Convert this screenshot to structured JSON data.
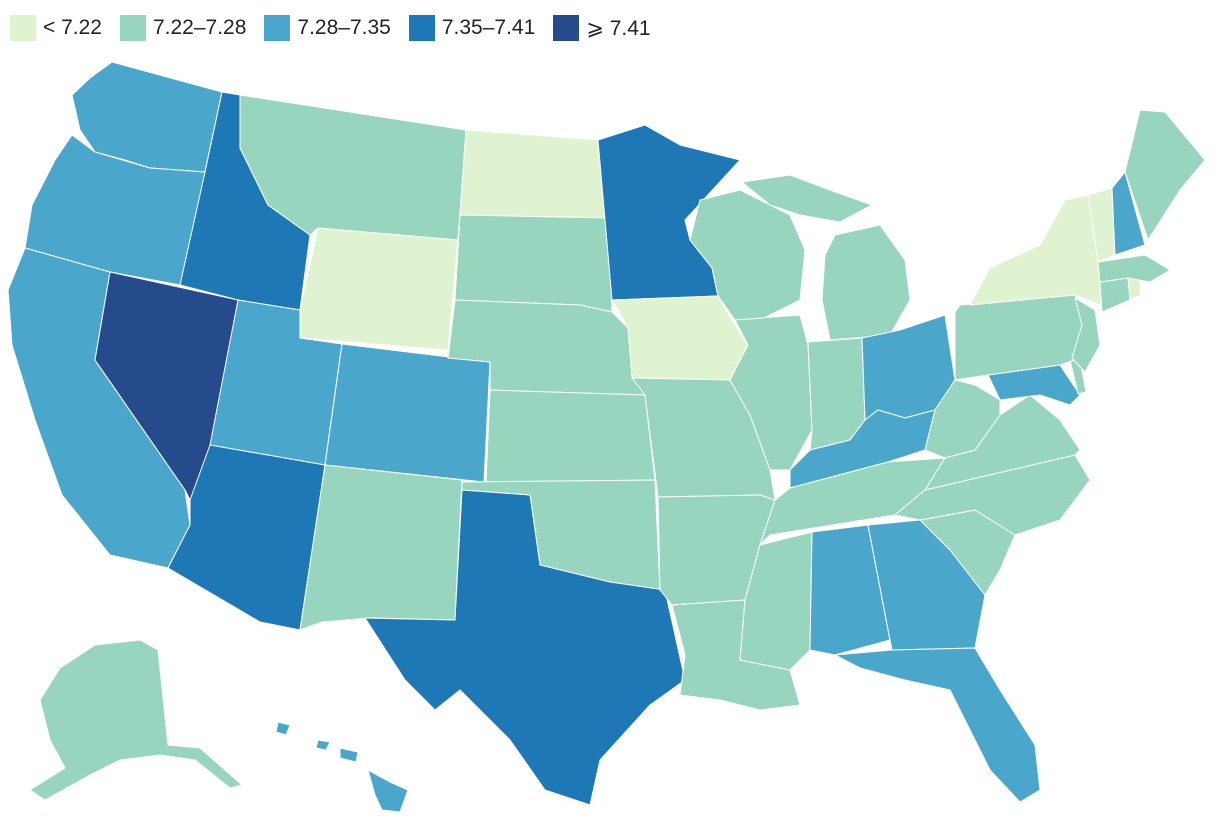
{
  "legend": [
    {
      "label": "< 7.22",
      "color": "#e0f3d0"
    },
    {
      "label": "7.22–7.28",
      "color": "#98d5bf"
    },
    {
      "label": "7.28–7.35",
      "color": "#4aa7cb"
    },
    {
      "label": "7.35–7.41",
      "color": "#1e78b6"
    },
    {
      "label": "⩾ 7.41",
      "color": "#264b8c"
    }
  ],
  "states": {
    "WA": 2,
    "OR": 2,
    "CA": 2,
    "NV": 4,
    "ID": 3,
    "MT": 1,
    "WY": 0,
    "UT": 2,
    "AZ": 3,
    "CO": 2,
    "NM": 1,
    "ND": 0,
    "SD": 1,
    "NE": 1,
    "KS": 1,
    "OK": 1,
    "TX": 3,
    "MN": 3,
    "IA": 0,
    "MO": 1,
    "AR": 1,
    "LA": 1,
    "WI": 1,
    "IL": 1,
    "MI": 1,
    "IN": 1,
    "OH": 2,
    "KY": 2,
    "TN": 1,
    "MS": 1,
    "AL": 2,
    "GA": 2,
    "FL": 2,
    "SC": 1,
    "NC": 1,
    "VA": 1,
    "WV": 1,
    "MD": 2,
    "DE": 1,
    "PA": 1,
    "NJ": 1,
    "NY": 0,
    "CT": 1,
    "RI": 0,
    "MA": 1,
    "VT": 0,
    "NH": 2,
    "ME": 1,
    "AK": 1,
    "HI": 2
  }
}
